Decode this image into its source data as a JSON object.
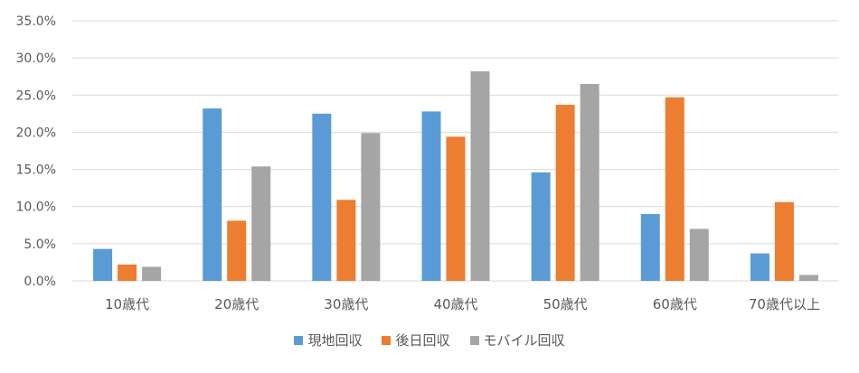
{
  "chart_data": {
    "type": "bar",
    "categories": [
      "10歳代",
      "20歳代",
      "30歳代",
      "40歳代",
      "50歳代",
      "60歳代",
      "70歳代以上"
    ],
    "series": [
      {
        "name": "現地回収",
        "color": "#5B9BD5",
        "values": [
          4.3,
          23.2,
          22.5,
          22.8,
          14.6,
          9.0,
          3.7
        ]
      },
      {
        "name": "後日回収",
        "color": "#ED7D31",
        "values": [
          2.2,
          8.1,
          10.9,
          19.4,
          23.7,
          24.7,
          10.6
        ]
      },
      {
        "name": "モバイル回収",
        "color": "#A5A5A5",
        "values": [
          1.9,
          15.4,
          19.9,
          28.2,
          26.5,
          7.0,
          0.8
        ]
      }
    ],
    "y_ticks": [
      "0.0%",
      "5.0%",
      "10.0%",
      "15.0%",
      "20.0%",
      "25.0%",
      "30.0%",
      "35.0%"
    ],
    "ylim": [
      0,
      35
    ],
    "grid": true,
    "legend_position": "bottom"
  }
}
